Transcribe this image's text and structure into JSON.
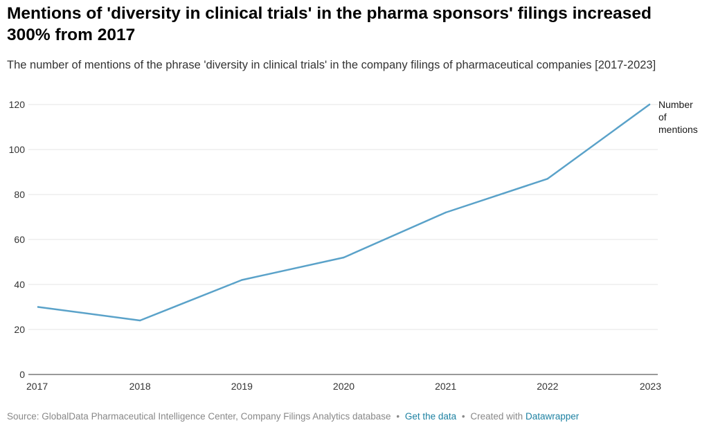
{
  "header": {
    "title": "Mentions of 'diversity in clinical trials' in the pharma sponsors' filings increased 300% from 2017",
    "subtitle": "The number of mentions of the phrase 'diversity in clinical trials' in the company filings of pharmaceutical companies [2017-2023]"
  },
  "chart_data": {
    "type": "line",
    "title": "Mentions of 'diversity in clinical trials' in the pharma sponsors' filings increased 300% from 2017",
    "xlabel": "",
    "ylabel": "",
    "x": [
      "2017",
      "2018",
      "2019",
      "2020",
      "2021",
      "2022",
      "2023"
    ],
    "series": [
      {
        "name": "Number of mentions",
        "label_lines": [
          "Number",
          "of",
          "mentions"
        ],
        "values": [
          30,
          24,
          42,
          52,
          72,
          87,
          120
        ],
        "color": "#5aa2c9"
      }
    ],
    "ylim": [
      0,
      120
    ],
    "yticks": [
      "0",
      "20",
      "40",
      "60",
      "80",
      "100",
      "120"
    ],
    "grid": true,
    "legend": "direct-label-right"
  },
  "footer": {
    "source_text": "Source: GlobalData Pharmaceutical Intelligence Center, Company Filings Analytics database",
    "separator": "•",
    "get_data_label": "Get the data",
    "created_with_text": "Created with",
    "datawrapper_label": "Datawrapper"
  },
  "colors": {
    "line": "#5aa2c9",
    "gridline": "#e4e4e4",
    "axis": "#333333",
    "link": "#1d81a2",
    "muted": "#888888"
  }
}
